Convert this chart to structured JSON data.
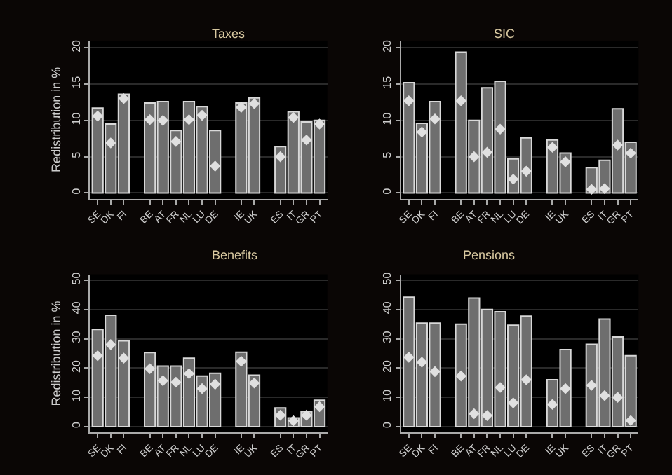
{
  "chart_data": [
    {
      "type": "bar",
      "title": "Taxes",
      "ylabel": "Redistribution in %",
      "categories": [
        "SE",
        "DK",
        "FI",
        null,
        "BE",
        "AT",
        "FR",
        "NL",
        "LU",
        "DE",
        null,
        "IE",
        "UK",
        null,
        "ES",
        "IT",
        "GR",
        "PT"
      ],
      "series": [
        {
          "color": "#6e6e6e",
          "values": [
            11.7,
            9.5,
            13.6,
            null,
            12.4,
            12.6,
            8.6,
            12.6,
            11.9,
            8.6,
            null,
            12.4,
            13.1,
            null,
            6.4,
            11.2,
            9.8,
            10.0
          ]
        },
        {
          "type": "scatter",
          "color": "#e0e0e0",
          "values": [
            10.6,
            6.9,
            13.0,
            null,
            10.1,
            10.0,
            7.1,
            10.1,
            10.7,
            3.7,
            null,
            11.8,
            12.3,
            null,
            5.0,
            10.4,
            7.3,
            9.5
          ]
        }
      ],
      "ylim": [
        -0.8,
        21
      ],
      "yticks": [
        0,
        5,
        10,
        15,
        20
      ],
      "grid": "y",
      "marker": "diamond"
    },
    {
      "type": "bar",
      "title": "SIC",
      "categories": [
        "SE",
        "DK",
        "FI",
        null,
        "BE",
        "AT",
        "FR",
        "NL",
        "LU",
        "DE",
        null,
        "IE",
        "UK",
        null,
        "ES",
        "IT",
        "GR",
        "PT"
      ],
      "series": [
        {
          "color": "#6e6e6e",
          "values": [
            15.2,
            9.6,
            12.6,
            null,
            19.4,
            10.0,
            14.5,
            15.4,
            4.7,
            7.6,
            null,
            7.3,
            5.5,
            null,
            3.5,
            4.5,
            11.6,
            7.0
          ]
        },
        {
          "type": "scatter",
          "color": "#e0e0e0",
          "values": [
            12.7,
            8.4,
            10.2,
            null,
            12.7,
            5.0,
            5.6,
            8.8,
            1.9,
            3.0,
            null,
            6.3,
            4.3,
            null,
            0.5,
            0.6,
            6.6,
            5.5
          ]
        }
      ],
      "ylim": [
        -0.8,
        21
      ],
      "yticks": [
        0,
        5,
        10,
        15,
        20
      ],
      "grid": "y",
      "marker": "diamond"
    },
    {
      "type": "bar",
      "title": "Benefits",
      "ylabel": "Redistribution in %",
      "categories": [
        "SE",
        "DK",
        "FI",
        null,
        "BE",
        "AT",
        "FR",
        "NL",
        "LU",
        "DE",
        null,
        "IE",
        "UK",
        null,
        "ES",
        "IT",
        "GR",
        "PT"
      ],
      "series": [
        {
          "color": "#6e6e6e",
          "values": [
            33.2,
            38.0,
            29.3,
            null,
            25.3,
            20.7,
            20.7,
            23.4,
            17.3,
            18.2,
            null,
            25.4,
            17.6,
            null,
            6.4,
            3.0,
            5.1,
            9.0
          ]
        },
        {
          "type": "scatter",
          "color": "#e0e0e0",
          "values": [
            24.2,
            28.0,
            23.4,
            null,
            19.8,
            15.7,
            15.2,
            18.1,
            13.0,
            14.5,
            null,
            22.3,
            14.9,
            null,
            3.9,
            2.0,
            3.9,
            6.8
          ]
        }
      ],
      "ylim": [
        -2,
        52
      ],
      "yticks": [
        0,
        10,
        20,
        30,
        40,
        50
      ],
      "grid": "y",
      "marker": "diamond"
    },
    {
      "type": "bar",
      "title": "Pensions",
      "categories": [
        "SE",
        "DK",
        "FI",
        null,
        "BE",
        "AT",
        "FR",
        "NL",
        "LU",
        "DE",
        null,
        "IE",
        "UK",
        null,
        "ES",
        "IT",
        "GR",
        "PT"
      ],
      "series": [
        {
          "color": "#6e6e6e",
          "values": [
            44.2,
            35.3,
            35.3,
            null,
            35.0,
            43.9,
            40.0,
            39.2,
            34.6,
            37.7,
            null,
            16.0,
            26.3,
            null,
            28.1,
            36.7,
            30.6,
            24.2
          ]
        },
        {
          "type": "scatter",
          "color": "#e0e0e0",
          "values": [
            23.7,
            22.0,
            18.8,
            null,
            17.3,
            4.4,
            3.8,
            13.4,
            8.1,
            16.0,
            null,
            7.6,
            13.0,
            null,
            14.1,
            10.6,
            10.0,
            2.1
          ]
        }
      ],
      "ylim": [
        -2,
        52
      ],
      "yticks": [
        0,
        10,
        20,
        30,
        40,
        50
      ],
      "grid": "y",
      "marker": "diamond"
    }
  ]
}
